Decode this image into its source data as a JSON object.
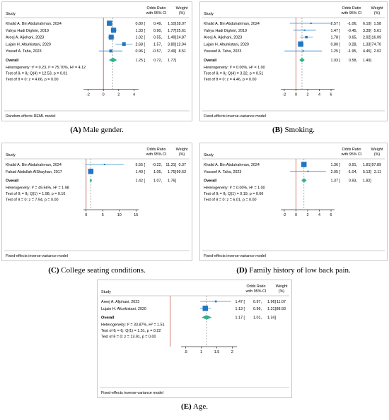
{
  "chart_data": [
    {
      "type": "forest",
      "panel_label": "(A)",
      "caption": "Male gender.",
      "header": {
        "study": "Study",
        "or": "Odds Ratio",
        "ci": "with 95% CI",
        "weight": "Weight",
        "weight_unit": "(%)"
      },
      "studies": [
        {
          "name": "Khalid A. Bin Abdulrahman, 2024",
          "or": 0.8,
          "lo": 0.49,
          "hi": 1.1,
          "weight": 28.07,
          "or_text": "0.80 [",
          "ci_text": "0.49,",
          "hi_text": "1.10]",
          "w_text": "28.07"
        },
        {
          "name": "Yahya Hadi Dighriri, 2019",
          "or": 1.33,
          "lo": 0.9,
          "hi": 1.77,
          "weight": 25.61,
          "or_text": "1.33 [",
          "ci_text": "0.90,",
          "hi_text": "1.77]",
          "w_text": "25.61"
        },
        {
          "name": "Areej A. Aljohani, 2023",
          "or": 1.02,
          "lo": 0.55,
          "hi": 1.49,
          "weight": 24.87,
          "or_text": "1.02 [",
          "ci_text": "0.55,",
          "hi_text": "1.49]",
          "w_text": "24.87"
        },
        {
          "name": "Lujain H. Alturkistani, 2020",
          "or": 2.68,
          "lo": 1.57,
          "hi": 3.8,
          "weight": 12.94,
          "or_text": "2.68 [",
          "ci_text": "1.57,",
          "hi_text": "3.80]",
          "w_text": "12.94"
        },
        {
          "name": "Yousef A. Taha, 2023",
          "or": 0.96,
          "lo": -0.57,
          "hi": 2.49,
          "weight": 8.51,
          "or_text": "0.96 [",
          "ci_text": "-0.57,",
          "hi_text": "2.49]",
          "w_text": "8.51"
        }
      ],
      "overall": {
        "label": "Overall",
        "or": 1.25,
        "lo": 0.72,
        "hi": 1.77,
        "or_text": "1.25 [",
        "ci_text": "0.72,",
        "hi_text": "1.77]"
      },
      "stats": [
        "Heterogeneity: τ² = 0.23, I² = 75.70%, H² = 4.12",
        "Test of θᵢ = θⱼ: Q(4) = 12.53, p = 0.01",
        "Test of θ = 0: z = 4.66, p = 0.00"
      ],
      "x_ticks": [
        -2,
        0,
        2,
        4
      ],
      "xlim": [
        -2.6,
        4.6
      ],
      "model": "Random-effects REML model",
      "colors": {
        "ci": "#2e8ecf",
        "square": "#1f77c4",
        "diamond": "#2fb38a",
        "ref": "#c0392b",
        "overall_line": "#777777"
      }
    },
    {
      "type": "forest",
      "panel_label": "(B)",
      "caption": "Smoking.",
      "header": {
        "study": "Study",
        "or": "Odds Ratio",
        "ci": "with 95% CI",
        "weight": "Weight",
        "weight_unit": "(%)"
      },
      "studies": [
        {
          "name": "Khalid A. Bin Abdulrahman, 2024",
          "or": 2.57,
          "lo": -1.06,
          "hi": 6.19,
          "weight": 1.58,
          "or_text": "2.57 [",
          "ci_text": "-1.06,",
          "hi_text": "6.19]",
          "w_text": "1.58"
        },
        {
          "name": "Yahya Hadi Dighriri, 2019",
          "or": 1.47,
          "lo": -0.45,
          "hi": 3.39,
          "weight": 5.61,
          "or_text": "1.47 [",
          "ci_text": "-0.45,",
          "hi_text": "3.39]",
          "w_text": "5.61"
        },
        {
          "name": "Areej A. Aljohani, 2023",
          "or": 1.78,
          "lo": 0.65,
          "hi": 2.92,
          "weight": 16.09,
          "or_text": "1.78 [",
          "ci_text": "0.65,",
          "hi_text": "2.92]",
          "w_text": "16.09"
        },
        {
          "name": "Lujain H. Alturkistani, 2020",
          "or": 0.8,
          "lo": 0.28,
          "hi": 1.33,
          "weight": 74.7,
          "or_text": "0.80 [",
          "ci_text": "0.28,",
          "hi_text": "1.33]",
          "w_text": "74.70"
        },
        {
          "name": "Youssef A. Taha, 2023",
          "or": 1.25,
          "lo": -1.95,
          "hi": 4.45,
          "weight": 2.02,
          "or_text": "1.25 [",
          "ci_text": "-1.95,",
          "hi_text": "4.45]",
          "w_text": "2.02"
        }
      ],
      "overall": {
        "label": "Overall",
        "or": 1.03,
        "lo": 0.58,
        "hi": 1.49,
        "or_text": "1.03 [",
        "ci_text": "0.58,",
        "hi_text": "1.49]"
      },
      "stats": [
        "Heterogeneity: I² = 0.00%, H² = 1.00",
        "Test of θᵢ = θⱼ: Q(4) = 3.32, p = 0.51",
        "Test of θ = 0: z = 4.46, p = 0.00"
      ],
      "x_ticks": [
        -2,
        0,
        2,
        4,
        6
      ],
      "xlim": [
        -2.6,
        6.6
      ],
      "model": "Fixed-effects inverse-variance model",
      "colors": {
        "ci": "#2e8ecf",
        "square": "#1f77c4",
        "diamond": "#2fb38a",
        "ref": "#c0392b",
        "overall_line": "#777777"
      }
    },
    {
      "type": "forest",
      "panel_label": "(C)",
      "caption": "College seating conditions.",
      "header": {
        "study": "Study",
        "or": "Odds Ratio",
        "ci": "with 95% CI",
        "weight": "Weight",
        "weight_unit": "(%)"
      },
      "studies": [
        {
          "name": "Khalid A. Bin Abdulrahman, 2024",
          "or": 5.55,
          "lo": -0.22,
          "hi": 11.31,
          "weight": 0.37,
          "or_text": "5.55 [",
          "ci_text": "-0.22,",
          "hi_text": "11.31]",
          "w_text": "0.37"
        },
        {
          "name": "Fahad Abdullah AlShayhan, 2017",
          "or": 1.4,
          "lo": 1.05,
          "hi": 1.75,
          "weight": 99.63,
          "or_text": "1.40 [",
          "ci_text": "1.05,",
          "hi_text": "1.75]",
          "w_text": "99.63"
        }
      ],
      "overall": {
        "label": "Overall",
        "or": 1.42,
        "lo": 1.07,
        "hi": 1.76,
        "or_text": "1.42 [",
        "ci_text": "1.07,",
        "hi_text": "1.76]"
      },
      "stats": [
        "Heterogeneity: I² = 49.56%, H² = 1.98",
        "Test of θᵢ = θⱼ: Q(1) = 1.98, p = 0.16",
        "Test of θ = 0: z = 7.94, p = 0.00"
      ],
      "x_ticks": [
        0,
        5,
        10,
        15
      ],
      "xlim": [
        -0.8,
        15.8
      ],
      "model": "Fixed-effects inverse-variance model",
      "colors": {
        "ci": "#2e8ecf",
        "square": "#1f77c4",
        "diamond": "#2fb38a",
        "ref": "#c0392b",
        "overall_line": "#777777"
      }
    },
    {
      "type": "forest",
      "panel_label": "(D)",
      "caption": "Family history of low back pain.",
      "header": {
        "study": "Study",
        "or": "Odds Ratio",
        "ci": "with 95% CI",
        "weight": "Weight",
        "weight_unit": "(%)"
      },
      "studies": [
        {
          "name": "Khalid A. Bin Abdulrahman, 2024",
          "or": 1.36,
          "lo": 0.91,
          "hi": 1.81,
          "weight": 97.89,
          "or_text": "1.36 [",
          "ci_text": "0.91,",
          "hi_text": "1.81]",
          "w_text": "97.89"
        },
        {
          "name": "Youssef A. Taha, 2023",
          "or": 2.05,
          "lo": -1.04,
          "hi": 5.13,
          "weight": 2.11,
          "or_text": "2.05 [",
          "ci_text": "-1.04,",
          "hi_text": "5.13]",
          "w_text": "2.11"
        }
      ],
      "overall": {
        "label": "Overall",
        "or": 1.37,
        "lo": 0.93,
        "hi": 1.82,
        "or_text": "1.37 [",
        "ci_text": "0.93,",
        "hi_text": "1.82]"
      },
      "stats": [
        "Heterogeneity: I² = 0.00%, H² = 1.00",
        "Test of θᵢ = θⱼ: Q(1) = 0.19, p = 0.66",
        "Test of θ = 0: z = 6.01, p = 0.00"
      ],
      "x_ticks": [
        -2,
        0,
        2,
        4,
        6
      ],
      "xlim": [
        -2.6,
        6.6
      ],
      "model": "Fixed-effects inverse-variance model",
      "colors": {
        "ci": "#2e8ecf",
        "square": "#1f77c4",
        "diamond": "#2fb38a",
        "ref": "#c0392b",
        "overall_line": "#777777"
      }
    },
    {
      "type": "forest",
      "panel_label": "(E)",
      "caption": "Age.",
      "header": {
        "study": "Study",
        "or": "Odds Ratio",
        "ci": "with 95% CI",
        "weight": "Weight",
        "weight_unit": "(%)"
      },
      "studies": [
        {
          "name": "Areej A. Aljohani, 2023",
          "or": 1.47,
          "lo": 0.97,
          "hi": 1.96,
          "weight": 11.07,
          "or_text": "1.47 [",
          "ci_text": "0.97,",
          "hi_text": "1.96]",
          "w_text": "11.07"
        },
        {
          "name": "Lujain H. Alturkistani, 2020",
          "or": 1.13,
          "lo": 0.96,
          "hi": 1.31,
          "weight": 88.93,
          "or_text": "1.13 [",
          "ci_text": "0.96,",
          "hi_text": "1.31]",
          "w_text": "88.93"
        }
      ],
      "overall": {
        "label": "Overall",
        "or": 1.17,
        "lo": 1.01,
        "hi": 1.34,
        "or_text": "1.17 [",
        "ci_text": "1.01,",
        "hi_text": "1.34]"
      },
      "stats": [
        "Heterogeneity: I² = 33.87%, H² = 1.51",
        "Test of θᵢ = θⱼ: Q(1) = 1.51, p = 0.22",
        "Test of θ = 0: z = 13.91, p = 0.00"
      ],
      "x_ticks": [
        0.5,
        1,
        1.5,
        2
      ],
      "x_tick_labels": [
        ".5",
        "1",
        "1.5",
        "2"
      ],
      "xlim": [
        0.35,
        2.15
      ],
      "model": "Fixed-effects inverse-variance model",
      "colors": {
        "ci": "#2e8ecf",
        "square": "#1f77c4",
        "diamond": "#2fb38a",
        "ref": "#c0392b",
        "overall_line": "#777777"
      }
    }
  ]
}
